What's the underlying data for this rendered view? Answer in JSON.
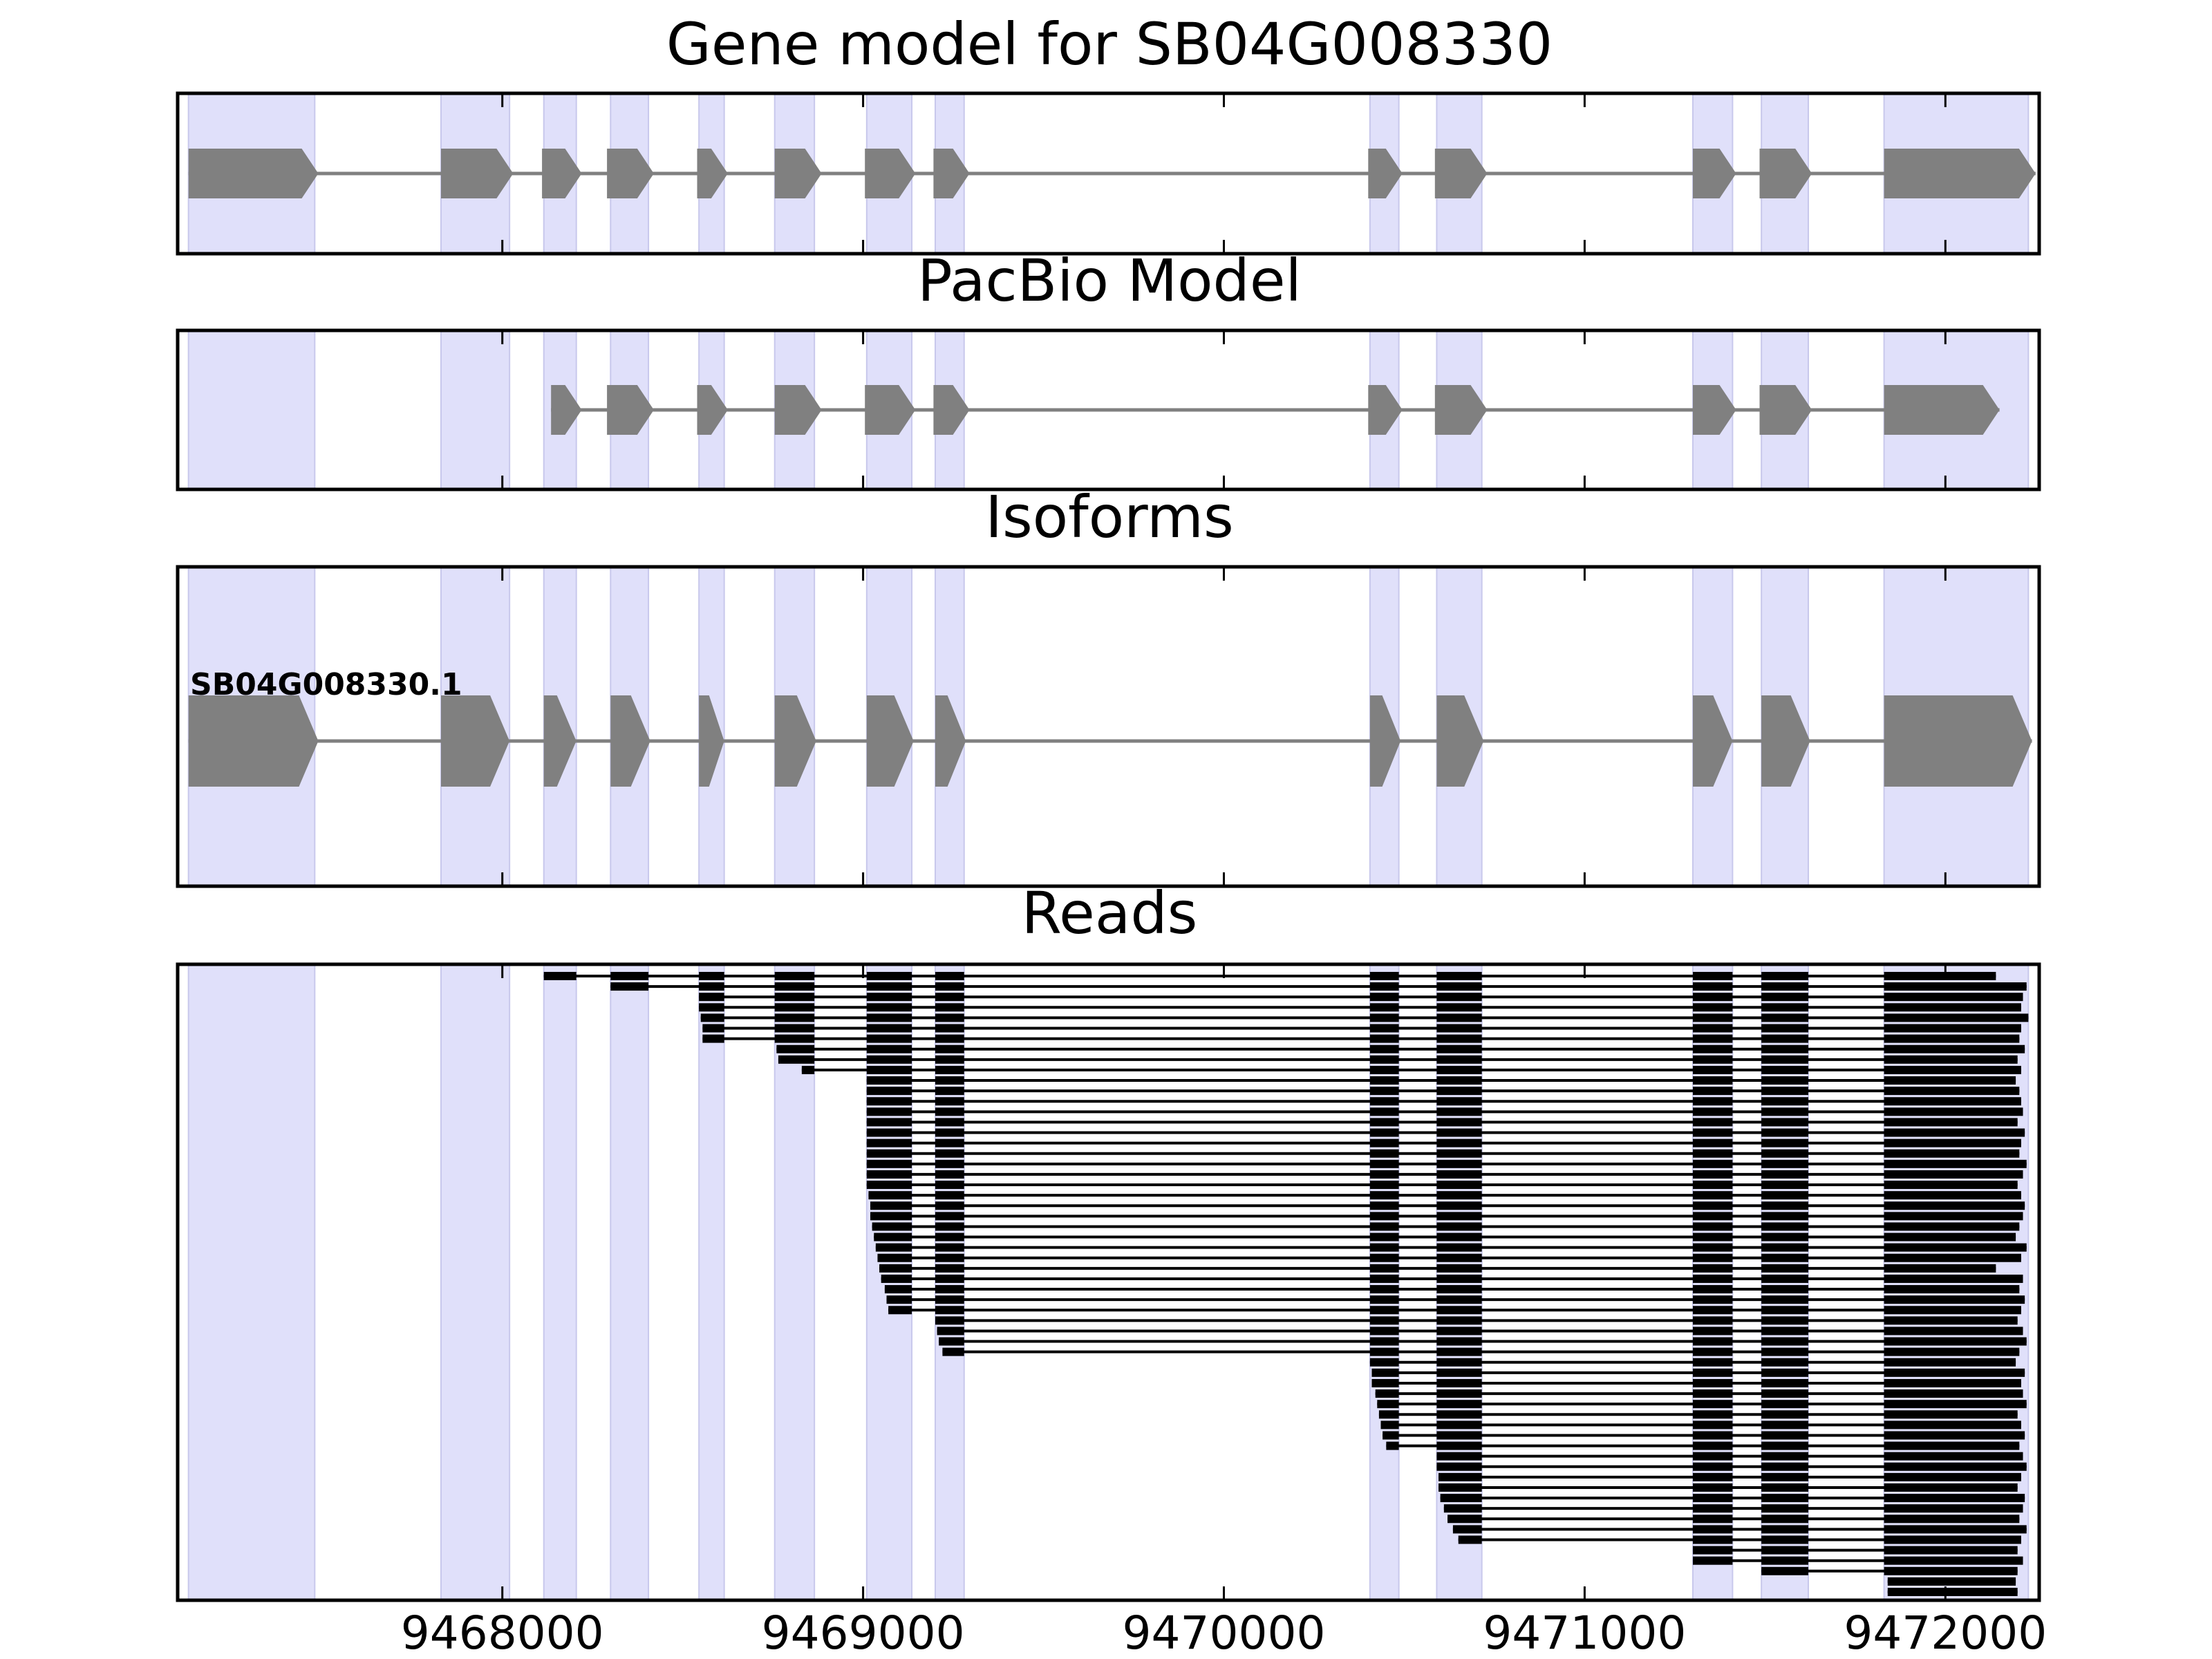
{
  "chart_data": {
    "type": "gene-structure",
    "xlim": [
      9467100,
      9472260
    ],
    "x_ticks": [
      9468000,
      9469000,
      9470000,
      9471000,
      9472000
    ],
    "x_tick_labels": [
      "9468000",
      "9469000",
      "9470000",
      "9471000",
      "9472000"
    ],
    "colors": {
      "exon_shading": "#e0e0fa",
      "exon_shading_edge": "#c8c8ec",
      "gene_shape": "#808080",
      "read": "#000000",
      "frame": "#000000"
    },
    "exon_regions": [
      [
        9467130,
        9467480
      ],
      [
        9467830,
        9468020
      ],
      [
        9468115,
        9468205
      ],
      [
        9468300,
        9468405
      ],
      [
        9468545,
        9468615
      ],
      [
        9468755,
        9468865
      ],
      [
        9469010,
        9469135
      ],
      [
        9469200,
        9469280
      ],
      [
        9470405,
        9470485
      ],
      [
        9470590,
        9470715
      ],
      [
        9471300,
        9471410
      ],
      [
        9471490,
        9471620
      ],
      [
        9471830,
        9472230
      ]
    ],
    "panels": [
      {
        "title": "Gene model for SB04G008330",
        "kind": "model",
        "exons": [
          [
            9467130,
            9467490
          ],
          [
            9467830,
            9468030
          ],
          [
            9468110,
            9468220
          ],
          [
            9468290,
            9468420
          ],
          [
            9468540,
            9468625
          ],
          [
            9468755,
            9468885
          ],
          [
            9469005,
            9469145
          ],
          [
            9469195,
            9469295
          ],
          [
            9470400,
            9470495
          ],
          [
            9470585,
            9470730
          ],
          [
            9471300,
            9471420
          ],
          [
            9471485,
            9471630
          ],
          [
            9471830,
            9472250
          ]
        ]
      },
      {
        "title": "PacBio Model",
        "kind": "model",
        "exons": [
          [
            9468135,
            9468220
          ],
          [
            9468290,
            9468420
          ],
          [
            9468540,
            9468625
          ],
          [
            9468755,
            9468885
          ],
          [
            9469005,
            9469145
          ],
          [
            9469195,
            9469295
          ],
          [
            9470400,
            9470495
          ],
          [
            9470585,
            9470730
          ],
          [
            9471300,
            9471420
          ],
          [
            9471485,
            9471630
          ],
          [
            9471830,
            9472150
          ]
        ]
      },
      {
        "title": "Isoforms",
        "kind": "isoform",
        "isoform_label": "SB04G008330.1",
        "exons": [
          [
            9467130,
            9467490
          ],
          [
            9467830,
            9468020
          ],
          [
            9468115,
            9468205
          ],
          [
            9468300,
            9468410
          ],
          [
            9468545,
            9468615
          ],
          [
            9468755,
            9468870
          ],
          [
            9469010,
            9469140
          ],
          [
            9469200,
            9469285
          ],
          [
            9470405,
            9470490
          ],
          [
            9470590,
            9470720
          ],
          [
            9471300,
            9471410
          ],
          [
            9471490,
            9471625
          ],
          [
            9471830,
            9472240
          ]
        ]
      },
      {
        "title": "Reads",
        "kind": "reads",
        "read_count": 60,
        "read_starts": [
          9468115,
          9468300,
          9468545,
          9468545,
          9468550,
          9468555,
          9468555,
          9468760,
          9468765,
          9468830,
          9469010,
          9469010,
          9469010,
          9469010,
          9469010,
          9469010,
          9469010,
          9469010,
          9469010,
          9469010,
          9469010,
          9469015,
          9469020,
          9469020,
          9469025,
          9469030,
          9469035,
          9469040,
          9469045,
          9469050,
          9469060,
          9469065,
          9469070,
          9469200,
          9469205,
          9469210,
          9469220,
          9470405,
          9470410,
          9470410,
          9470420,
          9470425,
          9470430,
          9470435,
          9470440,
          9470450,
          9470590,
          9470590,
          9470595,
          9470595,
          9470600,
          9470610,
          9470620,
          9470635,
          9470650,
          9471300,
          9471300,
          9471490,
          9471840,
          9471840
        ],
        "read_ends": [
          9472140,
          9472225,
          9472215,
          9472210,
          9472230,
          9472210,
          9472205,
          9472220,
          9472200,
          9472210,
          9472195,
          9472205,
          9472210,
          9472215,
          9472200,
          9472220,
          9472210,
          9472205,
          9472225,
          9472215,
          9472200,
          9472210,
          9472220,
          9472215,
          9472205,
          9472195,
          9472225,
          9472210,
          9472140,
          9472215,
          9472205,
          9472220,
          9472210,
          9472200,
          9472215,
          9472225,
          9472205,
          9472195,
          9472220,
          9472210,
          9472215,
          9472225,
          9472200,
          9472210,
          9472220,
          9472205,
          9472215,
          9472225,
          9472210,
          9472200,
          9472220,
          9472215,
          9472205,
          9472225,
          9472210,
          9472200,
          9472215,
          9472200,
          9472195,
          9472200
        ]
      }
    ]
  }
}
